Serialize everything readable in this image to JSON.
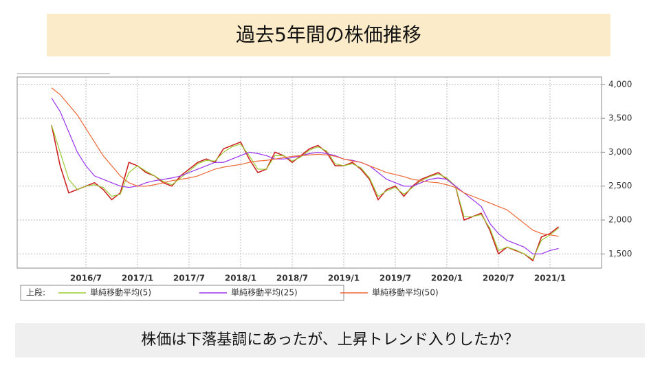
{
  "header": {
    "title": "過去5年間の株価推移"
  },
  "caption": "株価は下落基調にあったが、上昇トレンド入りしたか？",
  "chart_data": {
    "type": "line",
    "legend_prefix": "上段:",
    "categories": [
      null,
      null,
      null,
      null,
      "2016/7",
      null,
      null,
      null,
      null,
      null,
      "2017/1",
      null,
      null,
      null,
      null,
      null,
      "2017/7",
      null,
      null,
      null,
      null,
      null,
      "2018/1",
      null,
      null,
      null,
      null,
      null,
      "2018/7",
      null,
      null,
      null,
      null,
      null,
      "2019/1",
      null,
      null,
      null,
      null,
      null,
      "2019/7",
      null,
      null,
      null,
      null,
      null,
      "2020/1",
      null,
      null,
      null,
      null,
      null,
      "2020/7",
      null,
      null,
      null,
      null,
      null,
      "2021/1",
      null
    ],
    "values": [
      3400,
      2800,
      2400,
      2450,
      2500,
      2550,
      2450,
      2300,
      2400,
      2850,
      2800,
      2700,
      2650,
      2550,
      2500,
      2650,
      2750,
      2850,
      2900,
      2850,
      3050,
      3100,
      3150,
      2900,
      2700,
      2750,
      3000,
      2950,
      2850,
      2950,
      3050,
      3100,
      3000,
      2800,
      2800,
      2850,
      2750,
      2600,
      2300,
      2450,
      2500,
      2350,
      2500,
      2600,
      2650,
      2700,
      2600,
      2500,
      2000,
      2050,
      2100,
      1850,
      1500,
      1600,
      1550,
      1500,
      1400,
      1750,
      1800,
      1900
    ],
    "color": "#cc2222",
    "series": [
      {
        "name": "単純移動平均(5)",
        "color": "#99cc33",
        "values": [
          3400,
          3000,
          2600,
          2450,
          2500,
          2520,
          2480,
          2350,
          2380,
          2700,
          2800,
          2720,
          2650,
          2570,
          2520,
          2620,
          2720,
          2830,
          2880,
          2870,
          3000,
          3080,
          3120,
          2950,
          2750,
          2750,
          2950,
          2950,
          2870,
          2930,
          3030,
          3080,
          3020,
          2830,
          2800,
          2830,
          2770,
          2620,
          2350,
          2430,
          2480,
          2380,
          2480,
          2580,
          2640,
          2680,
          2620,
          2500,
          2050,
          2050,
          2080,
          1880,
          1550,
          1600,
          1560,
          1500,
          1420,
          1700,
          1780,
          1880
        ]
      },
      {
        "name": "単純移動平均(25)",
        "color": "#9933ee",
        "values": [
          3800,
          3600,
          3300,
          3000,
          2800,
          2650,
          2600,
          2550,
          2500,
          2480,
          2500,
          2550,
          2580,
          2600,
          2620,
          2650,
          2700,
          2750,
          2800,
          2850,
          2850,
          2900,
          2950,
          3000,
          2980,
          2950,
          2900,
          2900,
          2920,
          2950,
          2980,
          3000,
          2980,
          2950,
          2900,
          2880,
          2850,
          2800,
          2700,
          2600,
          2550,
          2500,
          2500,
          2550,
          2600,
          2620,
          2600,
          2500,
          2400,
          2300,
          2200,
          1950,
          1800,
          1700,
          1650,
          1600,
          1500,
          1500,
          1550,
          1580
        ]
      },
      {
        "name": "単純移動平均(50)",
        "color": "#ee6633",
        "values": [
          3950,
          3850,
          3700,
          3550,
          3350,
          3150,
          2950,
          2800,
          2650,
          2550,
          2500,
          2500,
          2520,
          2550,
          2580,
          2600,
          2620,
          2650,
          2700,
          2750,
          2780,
          2800,
          2820,
          2850,
          2870,
          2880,
          2900,
          2920,
          2940,
          2950,
          2960,
          2970,
          2960,
          2940,
          2900,
          2870,
          2850,
          2800,
          2750,
          2700,
          2670,
          2640,
          2600,
          2580,
          2560,
          2550,
          2520,
          2480,
          2400,
          2350,
          2300,
          2250,
          2200,
          2150,
          2050,
          1950,
          1850,
          1800,
          1780,
          1760
        ]
      }
    ],
    "ylim": [
      1290,
      4110
    ],
    "yticks": [
      {
        "value": 1500,
        "label": "1,500"
      },
      {
        "value": 2000,
        "label": "2,000"
      },
      {
        "value": 2500,
        "label": "2,500"
      },
      {
        "value": 3000,
        "label": "3,000"
      },
      {
        "value": 3500,
        "label": "3,500"
      },
      {
        "value": 4000,
        "label": "4,000"
      }
    ],
    "grid": true
  }
}
